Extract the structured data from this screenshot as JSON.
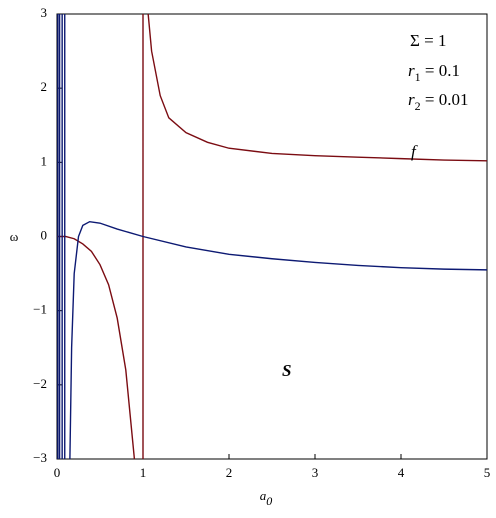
{
  "chart_data": {
    "type": "line",
    "x_label": {
      "main": "a",
      "sub": "0"
    },
    "y_label": "ω",
    "xlim": [
      0,
      5
    ],
    "ylim": [
      -3,
      3
    ],
    "xticks": [
      0,
      1,
      2,
      3,
      4,
      5
    ],
    "yticks": [
      {
        "value": -3,
        "label": "−3"
      },
      {
        "value": -2,
        "label": "−2"
      },
      {
        "value": -1,
        "label": "−1"
      },
      0,
      1,
      2,
      3
    ],
    "grid": false,
    "series": [
      {
        "color": "#7b0c12",
        "x": [
          0,
          0.1,
          0.2,
          0.3,
          0.4,
          0.5,
          0.6,
          0.7,
          0.8,
          0.85,
          0.9,
          null,
          1,
          1,
          null,
          1.06,
          1.1,
          1.2,
          1.3,
          1.5,
          1.75,
          2,
          2.5,
          3,
          3.5,
          4,
          4.5,
          5
        ],
        "values": [
          0,
          0,
          -0.03,
          -0.1,
          -0.2,
          -0.38,
          -0.65,
          -1.1,
          -1.8,
          -2.4,
          -3,
          null,
          3,
          -3,
          null,
          3,
          2.5,
          1.9,
          1.6,
          1.4,
          1.27,
          1.19,
          1.12,
          1.09,
          1.07,
          1.05,
          1.03,
          1.02
        ]
      },
      {
        "color": "#0d1a73",
        "x": [
          0.01,
          0.01,
          null,
          0.03,
          0.03,
          null,
          0.06,
          0.06,
          null,
          0.09,
          0.09,
          null,
          0.15,
          0.17,
          0.2,
          0.25,
          0.3,
          0.38,
          0.5,
          0.7,
          1,
          1.5,
          2,
          2.5,
          3,
          3.5,
          4,
          4.5,
          5
        ],
        "values": [
          3,
          -3,
          null,
          3,
          -3,
          null,
          3,
          -3,
          null,
          3,
          -3,
          null,
          -3,
          -1.5,
          -0.5,
          0,
          0.15,
          0.2,
          0.18,
          0.1,
          0,
          -0.14,
          -0.24,
          -0.3,
          -0.35,
          -0.39,
          -0.42,
          -0.44,
          -0.45
        ]
      }
    ],
    "annotations": [
      {
        "main": "Σ = 1"
      },
      {
        "main": "r",
        "sub": "1",
        "rest": " = 0.1"
      },
      {
        "main": "r",
        "sub": "2",
        "rest": " = 0.01"
      },
      {
        "main": "f"
      },
      {
        "main": "S"
      }
    ]
  }
}
